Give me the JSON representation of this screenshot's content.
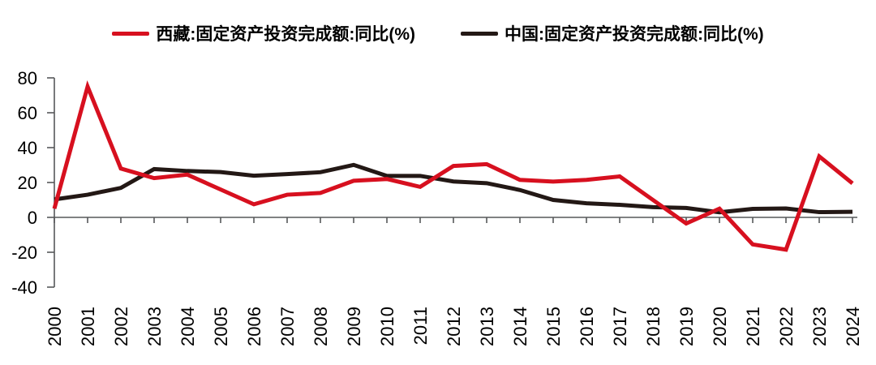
{
  "chart_data": {
    "type": "line",
    "x": [
      2000,
      2001,
      2002,
      2003,
      2004,
      2005,
      2006,
      2007,
      2008,
      2009,
      2010,
      2011,
      2012,
      2013,
      2014,
      2015,
      2016,
      2017,
      2018,
      2019,
      2020,
      2021,
      2022,
      2023,
      2024
    ],
    "series": [
      {
        "name": "西藏:固定资产投资完成额:同比(%)",
        "color": "#d7101f",
        "values": [
          5,
          75,
          28,
          22.5,
          24.5,
          16,
          7.5,
          13,
          14,
          21,
          22,
          17.5,
          29.5,
          30.5,
          21.5,
          20.5,
          21.5,
          23.5,
          10,
          -3.5,
          5,
          -15.5,
          -18.5,
          35,
          19.5
        ]
      },
      {
        "name": "中国:固定资产投资完成额:同比(%)",
        "color": "#231815",
        "values": [
          10.3,
          13.0,
          16.9,
          27.7,
          26.6,
          26.0,
          23.9,
          24.8,
          25.9,
          30.1,
          23.8,
          23.8,
          20.6,
          19.6,
          15.7,
          10.0,
          8.1,
          7.2,
          5.9,
          5.4,
          2.9,
          4.9,
          5.1,
          3.0,
          3.2
        ]
      }
    ],
    "title": "",
    "xlabel": "",
    "ylabel": "",
    "ylim": [
      -40,
      80
    ],
    "yticks": [
      80,
      60,
      40,
      20,
      0,
      -20,
      -40
    ],
    "grid": false,
    "legend_position": "top",
    "axis_color": "#57585a"
  }
}
